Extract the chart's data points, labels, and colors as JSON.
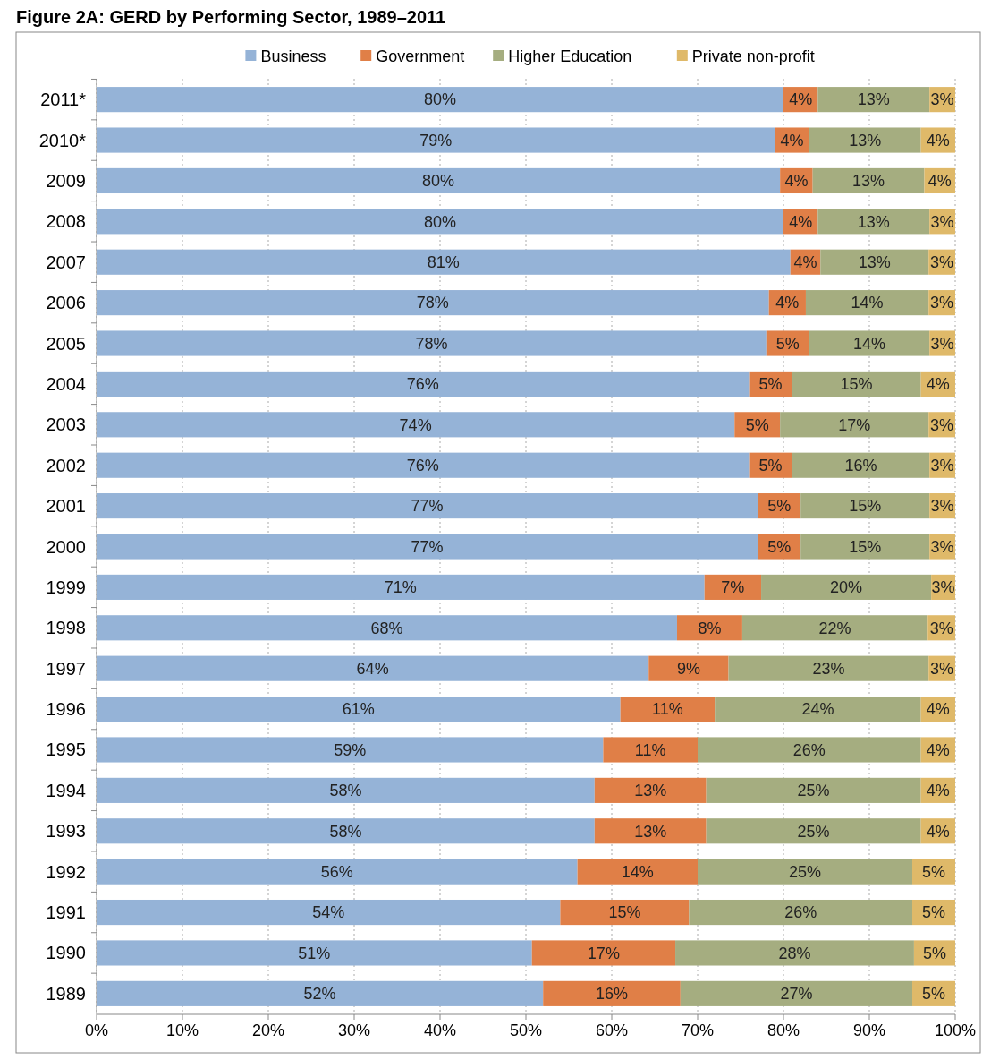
{
  "chart_data": {
    "type": "bar",
    "orientation": "horizontal",
    "stacked": true,
    "title": "Figure 2A: GERD by Performing Sector, 1989–2011",
    "legend": "top",
    "categories": [
      "2011*",
      "2010*",
      "2009",
      "2008",
      "2007",
      "2006",
      "2005",
      "2004",
      "2003",
      "2002",
      "2001",
      "2000",
      "1999",
      "1998",
      "1997",
      "1996",
      "1995",
      "1994",
      "1993",
      "1992",
      "1991",
      "1990",
      "1989"
    ],
    "xlim": [
      0,
      100
    ],
    "xticks": [
      {
        "value": 0,
        "label": "0%"
      },
      {
        "value": 10,
        "label": "10%"
      },
      {
        "value": 20,
        "label": "20%"
      },
      {
        "value": 30,
        "label": "30%"
      },
      {
        "value": 40,
        "label": "40%"
      },
      {
        "value": 50,
        "label": "50%"
      },
      {
        "value": 60,
        "label": "60%"
      },
      {
        "value": 70,
        "label": "70%"
      },
      {
        "value": 80,
        "label": "80%"
      },
      {
        "value": 90,
        "label": "90%"
      },
      {
        "value": 100,
        "label": "100%"
      }
    ],
    "grid": "x",
    "series": [
      {
        "name": "Business",
        "color": "#95b3d7",
        "values": [
          80,
          79,
          79.6,
          80,
          80.8,
          78.3,
          78,
          76,
          74.3,
          76,
          77,
          77,
          70.8,
          67.6,
          64.3,
          61,
          59,
          58,
          58,
          56,
          54,
          50.7,
          52
        ],
        "value_labels": [
          "80%",
          "79%",
          "80%",
          "80%",
          "81%",
          "78%",
          "78%",
          "76%",
          "74%",
          "76%",
          "77%",
          "77%",
          "71%",
          "68%",
          "64%",
          "61%",
          "59%",
          "58%",
          "58%",
          "56%",
          "54%",
          "51%",
          "52%"
        ]
      },
      {
        "name": "Government",
        "color": "#e07f47",
        "values": [
          4,
          4,
          3.8,
          4,
          3.5,
          4.3,
          5,
          5,
          5.3,
          5,
          5,
          5,
          6.6,
          7.6,
          9.3,
          11,
          11,
          13,
          13,
          14,
          15,
          16.7,
          16
        ],
        "value_labels": [
          "4%",
          "4%",
          "4%",
          "4%",
          "4%",
          "4%",
          "5%",
          "5%",
          "5%",
          "5%",
          "5%",
          "5%",
          "7%",
          "8%",
          "9%",
          "11%",
          "11%",
          "13%",
          "13%",
          "14%",
          "15%",
          "17%",
          "16%"
        ]
      },
      {
        "name": "Higher Education",
        "color": "#a5ad80",
        "values": [
          13,
          13,
          13,
          13,
          12.6,
          14.3,
          14,
          15,
          17.3,
          16,
          15,
          15,
          19.8,
          21.6,
          23.3,
          24,
          26,
          25,
          25,
          25,
          26,
          27.8,
          27
        ],
        "value_labels": [
          "13%",
          "13%",
          "13%",
          "13%",
          "13%",
          "14%",
          "14%",
          "15%",
          "17%",
          "16%",
          "15%",
          "15%",
          "20%",
          "22%",
          "23%",
          "24%",
          "26%",
          "25%",
          "25%",
          "25%",
          "26%",
          "28%",
          "27%"
        ]
      },
      {
        "name": "Private non-profit",
        "color": "#dfb969",
        "values": [
          3,
          4,
          3.6,
          3,
          3.1,
          3.1,
          3,
          4,
          3.1,
          3,
          3,
          3,
          2.8,
          3.2,
          3.1,
          4,
          4,
          4,
          4,
          5,
          5,
          4.8,
          5
        ],
        "value_labels": [
          "3%",
          "4%",
          "4%",
          "3%",
          "3%",
          "3%",
          "3%",
          "4%",
          "3%",
          "3%",
          "3%",
          "3%",
          "3%",
          "3%",
          "3%",
          "4%",
          "4%",
          "4%",
          "4%",
          "5%",
          "5%",
          "5%",
          "5%"
        ]
      }
    ]
  }
}
